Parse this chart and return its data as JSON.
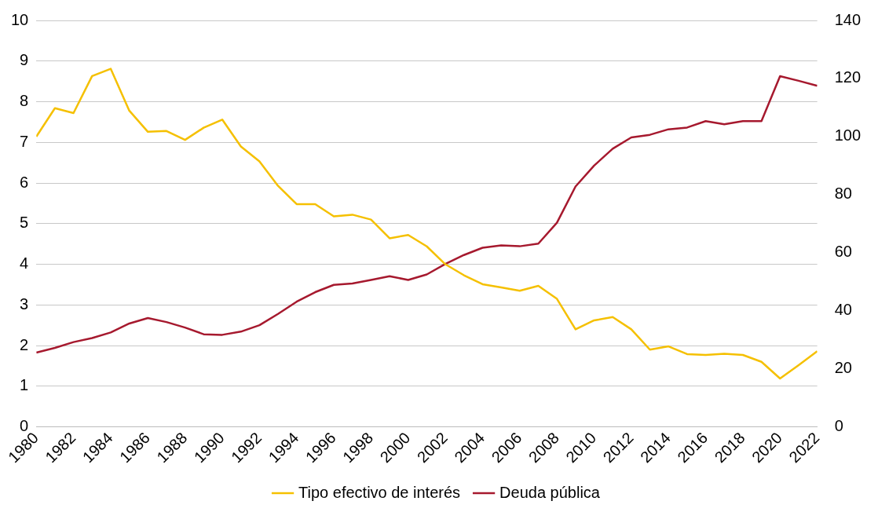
{
  "chart_data": {
    "type": "line",
    "x": [
      1980,
      1981,
      1982,
      1983,
      1984,
      1985,
      1986,
      1987,
      1988,
      1989,
      1990,
      1991,
      1992,
      1993,
      1994,
      1995,
      1996,
      1997,
      1998,
      1999,
      2000,
      2001,
      2002,
      2003,
      2004,
      2005,
      2006,
      2007,
      2008,
      2009,
      2010,
      2011,
      2012,
      2013,
      2014,
      2015,
      2016,
      2017,
      2018,
      2019,
      2020,
      2021,
      2022
    ],
    "series": [
      {
        "name": "Tipo efectivo de interés",
        "color": "#f5c000",
        "values": [
          7.14,
          7.84,
          7.72,
          8.63,
          8.81,
          7.78,
          7.26,
          7.28,
          7.06,
          7.36,
          7.56,
          6.9,
          6.53,
          5.93,
          5.48,
          5.48,
          5.18,
          5.22,
          5.1,
          4.64,
          4.72,
          4.44,
          4.0,
          3.73,
          3.51,
          3.43,
          3.35,
          3.47,
          3.15,
          2.4,
          2.62,
          2.7,
          2.4,
          1.9,
          1.98,
          1.79,
          1.77,
          1.8,
          1.77,
          1.6,
          1.19,
          1.52,
          1.86
        ]
      },
      {
        "name": "Deuda pública",
        "color": "#a6192e",
        "axis": "y2",
        "values": [
          25.6,
          27.2,
          29.2,
          30.6,
          32.5,
          35.6,
          37.5,
          36.1,
          34.2,
          31.9,
          31.7,
          32.8,
          35,
          38.9,
          43.1,
          46.4,
          48.9,
          49.4,
          50.6,
          51.9,
          50.6,
          52.5,
          56.1,
          59.2,
          61.7,
          62.5,
          62.2,
          63.1,
          70.3,
          82.8,
          90,
          95.8,
          99.7,
          100.6,
          102.5,
          103.1,
          105.3,
          104.2,
          105.3,
          105.3,
          120.8,
          119.2,
          117.5
        ]
      }
    ],
    "xlim": [
      1980,
      2022
    ],
    "xticks": [
      1980,
      1982,
      1984,
      1986,
      1988,
      1990,
      1992,
      1994,
      1996,
      1998,
      2000,
      2002,
      2004,
      2006,
      2008,
      2010,
      2012,
      2014,
      2016,
      2018,
      2020,
      2022
    ],
    "ylim": [
      0,
      10
    ],
    "yticks": [
      0,
      1,
      2,
      3,
      4,
      5,
      6,
      7,
      8,
      9,
      10
    ],
    "y2lim": [
      0,
      140
    ],
    "y2ticks": [
      0,
      20,
      40,
      60,
      80,
      100,
      120,
      140
    ],
    "grid": "y",
    "legend": "bottom",
    "marker": "none",
    "line_style": "solid"
  }
}
